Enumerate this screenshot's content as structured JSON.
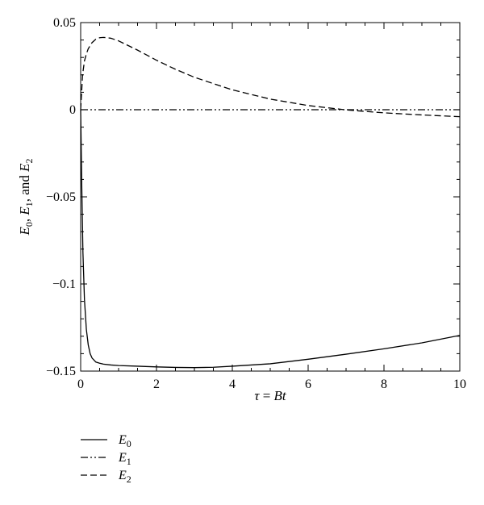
{
  "chart_data": {
    "type": "line",
    "xlim": [
      0,
      10
    ],
    "ylim": [
      -0.15,
      0.05
    ],
    "x_ticks": [
      0,
      2,
      4,
      6,
      8,
      10
    ],
    "x_tick_labels": [
      "0",
      "2",
      "4",
      "6",
      "8",
      "10"
    ],
    "y_ticks": [
      0.05,
      0,
      -0.05,
      -0.1,
      -0.15
    ],
    "y_tick_labels": [
      "0.05",
      "0",
      "−0.05",
      "−0.1",
      "−0.15"
    ],
    "xlabel": {
      "sym1": "τ",
      "eq": " = ",
      "sym2": "Bt"
    },
    "ylabel": {
      "e": "E",
      "s0": "0",
      "s1": "1",
      "s2": "2",
      "sep": ", ",
      "and": ", and "
    },
    "grid": false,
    "legend_placement": "below",
    "series": [
      {
        "name": "E0",
        "legend_base": "E",
        "legend_sub": "0",
        "dash": "solid",
        "x": [
          0,
          0.03,
          0.06,
          0.1,
          0.15,
          0.2,
          0.25,
          0.3,
          0.4,
          0.5,
          0.6,
          0.8,
          1,
          1.5,
          2,
          2.5,
          3,
          3.5,
          4,
          5,
          6,
          7,
          8,
          9,
          10
        ],
        "y": [
          0,
          -0.045,
          -0.082,
          -0.109,
          -0.126,
          -0.135,
          -0.14,
          -0.1425,
          -0.1448,
          -0.1455,
          -0.146,
          -0.1465,
          -0.1468,
          -0.1472,
          -0.1476,
          -0.1479,
          -0.148,
          -0.1478,
          -0.1472,
          -0.1458,
          -0.1432,
          -0.1403,
          -0.1372,
          -0.1338,
          -0.1295
        ]
      },
      {
        "name": "E1",
        "legend_base": "E",
        "legend_sub": "1",
        "dash": "dashdotdot",
        "x": [
          0,
          10
        ],
        "y": [
          0,
          0
        ]
      },
      {
        "name": "E2",
        "legend_base": "E",
        "legend_sub": "2",
        "dash": "dashed",
        "x": [
          0,
          0.05,
          0.1,
          0.15,
          0.2,
          0.3,
          0.4,
          0.5,
          0.6,
          0.7,
          0.8,
          1,
          1.5,
          2,
          2.5,
          3,
          4,
          5,
          6,
          7,
          8,
          9,
          10
        ],
        "y": [
          0,
          0.02,
          0.028,
          0.032,
          0.035,
          0.0385,
          0.0405,
          0.0413,
          0.0415,
          0.0413,
          0.041,
          0.0395,
          0.0342,
          0.0284,
          0.0232,
          0.0186,
          0.0114,
          0.0061,
          0.0024,
          -0.0001,
          -0.0018,
          -0.003,
          -0.004
        ]
      }
    ]
  }
}
